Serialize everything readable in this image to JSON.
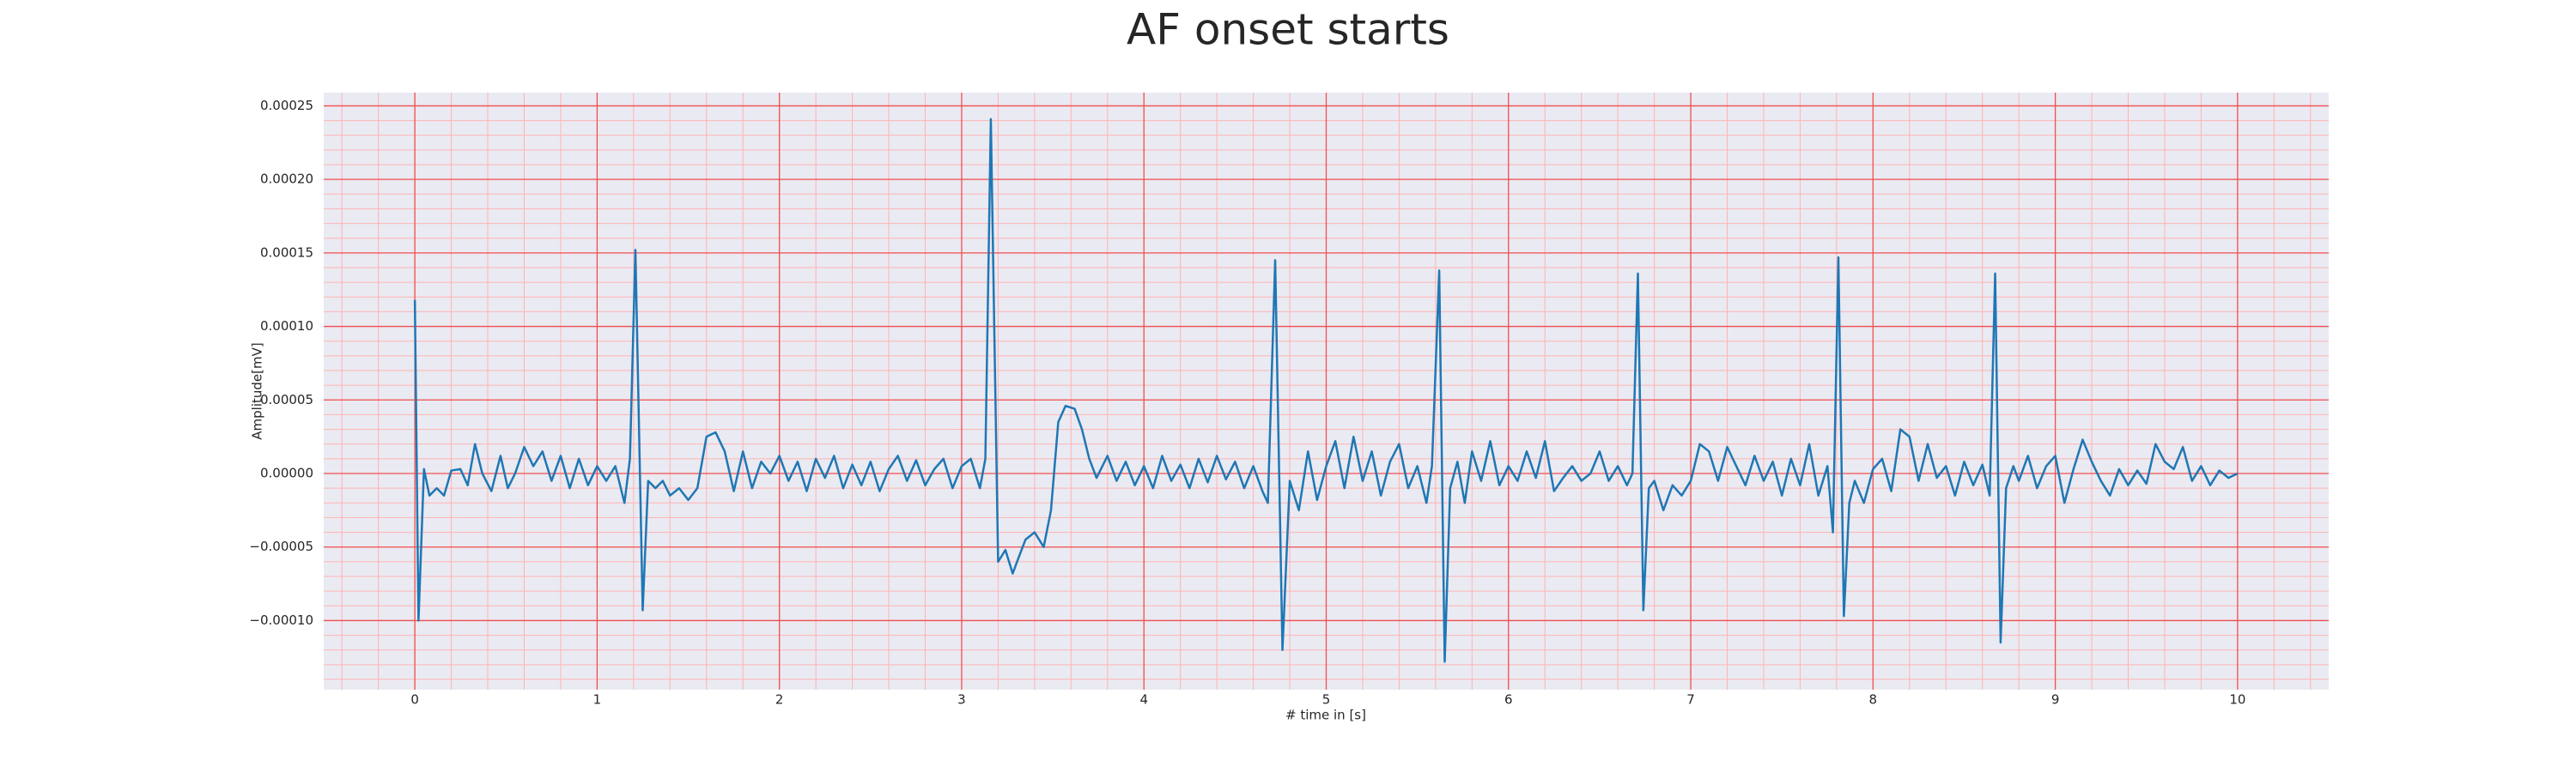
{
  "chart_data": {
    "type": "line",
    "title": "AF onset starts",
    "xlabel": "# time in [s]",
    "ylabel": "Amplitude[mV]",
    "x": [
      0,
      0.02,
      0.05,
      0.08,
      0.12,
      0.16,
      0.2,
      0.25,
      0.29,
      0.33,
      0.37,
      0.42,
      0.47,
      0.51,
      0.55,
      0.6,
      0.65,
      0.7,
      0.75,
      0.8,
      0.85,
      0.9,
      0.95,
      1.0,
      1.05,
      1.1,
      1.15,
      1.18,
      1.21,
      1.25,
      1.28,
      1.32,
      1.36,
      1.4,
      1.45,
      1.5,
      1.55,
      1.6,
      1.65,
      1.7,
      1.75,
      1.8,
      1.85,
      1.9,
      1.95,
      2.0,
      2.05,
      2.1,
      2.15,
      2.2,
      2.25,
      2.3,
      2.35,
      2.4,
      2.45,
      2.5,
      2.55,
      2.6,
      2.65,
      2.7,
      2.75,
      2.8,
      2.85,
      2.9,
      2.95,
      3.0,
      3.05,
      3.1,
      3.13,
      3.16,
      3.2,
      3.24,
      3.28,
      3.31,
      3.35,
      3.4,
      3.45,
      3.49,
      3.53,
      3.57,
      3.62,
      3.66,
      3.7,
      3.74,
      3.8,
      3.85,
      3.9,
      3.95,
      4.0,
      4.05,
      4.1,
      4.15,
      4.2,
      4.25,
      4.3,
      4.35,
      4.4,
      4.45,
      4.5,
      4.55,
      4.6,
      4.65,
      4.68,
      4.72,
      4.76,
      4.8,
      4.85,
      4.9,
      4.95,
      5.0,
      5.05,
      5.1,
      5.15,
      5.2,
      5.25,
      5.3,
      5.35,
      5.4,
      5.45,
      5.5,
      5.55,
      5.58,
      5.62,
      5.65,
      5.68,
      5.72,
      5.76,
      5.8,
      5.85,
      5.9,
      5.95,
      6.0,
      6.05,
      6.1,
      6.15,
      6.2,
      6.25,
      6.3,
      6.35,
      6.4,
      6.45,
      6.5,
      6.55,
      6.6,
      6.65,
      6.68,
      6.71,
      6.74,
      6.77,
      6.8,
      6.85,
      6.9,
      6.95,
      7.0,
      7.05,
      7.1,
      7.15,
      7.2,
      7.25,
      7.3,
      7.35,
      7.4,
      7.45,
      7.5,
      7.55,
      7.6,
      7.65,
      7.7,
      7.75,
      7.78,
      7.81,
      7.84,
      7.87,
      7.9,
      7.95,
      8.0,
      8.05,
      8.1,
      8.15,
      8.2,
      8.25,
      8.3,
      8.35,
      8.4,
      8.45,
      8.5,
      8.55,
      8.6,
      8.64,
      8.67,
      8.7,
      8.73,
      8.77,
      8.8,
      8.85,
      8.9,
      8.95,
      9.0,
      9.05,
      9.1,
      9.15,
      9.2,
      9.25,
      9.3,
      9.35,
      9.4,
      9.45,
      9.5,
      9.55,
      9.6,
      9.65,
      9.7,
      9.75,
      9.8,
      9.85,
      9.9,
      9.95,
      10.0
    ],
    "series": [
      {
        "color": "#1f77b4",
        "values": [
          0.000118,
          -0.0001,
          3e-06,
          -1.5e-05,
          -1e-05,
          -1.5e-05,
          2e-06,
          3e-06,
          -8e-06,
          2e-05,
          0,
          -1.2e-05,
          1.2e-05,
          -1e-05,
          0,
          1.8e-05,
          5e-06,
          1.5e-05,
          -5e-06,
          1.2e-05,
          -1e-05,
          1e-05,
          -8e-06,
          5e-06,
          -5e-06,
          5e-06,
          -2e-05,
          1e-05,
          0.000152,
          -9.3e-05,
          -5e-06,
          -1e-05,
          -5e-06,
          -1.5e-05,
          -1e-05,
          -1.8e-05,
          -1e-05,
          2.5e-05,
          2.8e-05,
          1.5e-05,
          -1.2e-05,
          1.5e-05,
          -1e-05,
          8e-06,
          0,
          1.2e-05,
          -5e-06,
          8e-06,
          -1.2e-05,
          1e-05,
          -3e-06,
          1.2e-05,
          -1e-05,
          6e-06,
          -8e-06,
          8e-06,
          -1.2e-05,
          3e-06,
          1.2e-05,
          -5e-06,
          9e-06,
          -8e-06,
          3e-06,
          1e-05,
          -1e-05,
          5e-06,
          1e-05,
          -1e-05,
          1e-05,
          0.000241,
          -6e-05,
          -5.2e-05,
          -6.8e-05,
          -5.8e-05,
          -4.5e-05,
          -4e-05,
          -5e-05,
          -2.5e-05,
          3.5e-05,
          4.6e-05,
          4.4e-05,
          3e-05,
          1e-05,
          -3e-06,
          1.2e-05,
          -5e-06,
          8e-06,
          -8e-06,
          5e-06,
          -1e-05,
          1.2e-05,
          -5e-06,
          6e-06,
          -1e-05,
          1e-05,
          -6e-06,
          1.2e-05,
          -4e-06,
          8e-06,
          -1e-05,
          5e-06,
          -1.2e-05,
          -2e-05,
          0.000145,
          -0.00012,
          -5e-06,
          -2.5e-05,
          1.5e-05,
          -1.8e-05,
          5e-06,
          2.2e-05,
          -1e-05,
          2.5e-05,
          -5e-06,
          1.5e-05,
          -1.5e-05,
          8e-06,
          2e-05,
          -1e-05,
          5e-06,
          -2e-05,
          5e-06,
          0.000138,
          -0.000128,
          -1e-05,
          8e-06,
          -2e-05,
          1.5e-05,
          -5e-06,
          2.2e-05,
          -8e-06,
          5e-06,
          -5e-06,
          1.5e-05,
          -3e-06,
          2.2e-05,
          -1.2e-05,
          -3e-06,
          5e-06,
          -5e-06,
          0,
          1.5e-05,
          -5e-06,
          5e-06,
          -8e-06,
          0,
          0.000136,
          -9.3e-05,
          -1e-05,
          -5e-06,
          -2.5e-05,
          -8e-06,
          -1.5e-05,
          -5e-06,
          2e-05,
          1.5e-05,
          -5e-06,
          1.8e-05,
          5e-06,
          -8e-06,
          1.2e-05,
          -5e-06,
          8e-06,
          -1.5e-05,
          1e-05,
          -8e-06,
          2e-05,
          -1.5e-05,
          5e-06,
          -4e-05,
          0.000147,
          -9.7e-05,
          -2e-05,
          -5e-06,
          -2e-05,
          3e-06,
          1e-05,
          -1.2e-05,
          3e-05,
          2.5e-05,
          -5e-06,
          2e-05,
          -3e-06,
          5e-06,
          -1.5e-05,
          8e-06,
          -8e-06,
          6e-06,
          -1.5e-05,
          0.000136,
          -0.000115,
          -1e-05,
          5e-06,
          -5e-06,
          1.2e-05,
          -1e-05,
          5e-06,
          1.2e-05,
          -2e-05,
          3e-06,
          2.3e-05,
          8e-06,
          -5e-06,
          -1.5e-05,
          3e-06,
          -8e-06,
          2e-06,
          -7e-06,
          2e-05,
          8e-06,
          3e-06,
          1.8e-05,
          -5e-06,
          5e-06,
          -8e-06,
          2e-06,
          -3e-06,
          0
        ]
      }
    ],
    "xlim": [
      -0.5,
      10.5
    ],
    "ylim": [
      -0.000147,
      0.000259
    ],
    "xticks": [
      0,
      1,
      2,
      3,
      4,
      5,
      6,
      7,
      8,
      9,
      10
    ],
    "yticks": [
      {
        "value": -0.0001,
        "label": "−0.00010"
      },
      {
        "value": -5e-05,
        "label": "−0.00005"
      },
      {
        "value": 0,
        "label": "0.00000"
      },
      {
        "value": 5e-05,
        "label": "0.00005"
      },
      {
        "value": 0.0001,
        "label": "0.00010"
      },
      {
        "value": 0.00015,
        "label": "0.00015"
      },
      {
        "value": 0.0002,
        "label": "0.00020"
      },
      {
        "value": 0.00025,
        "label": "0.00025"
      }
    ],
    "grid": true
  }
}
